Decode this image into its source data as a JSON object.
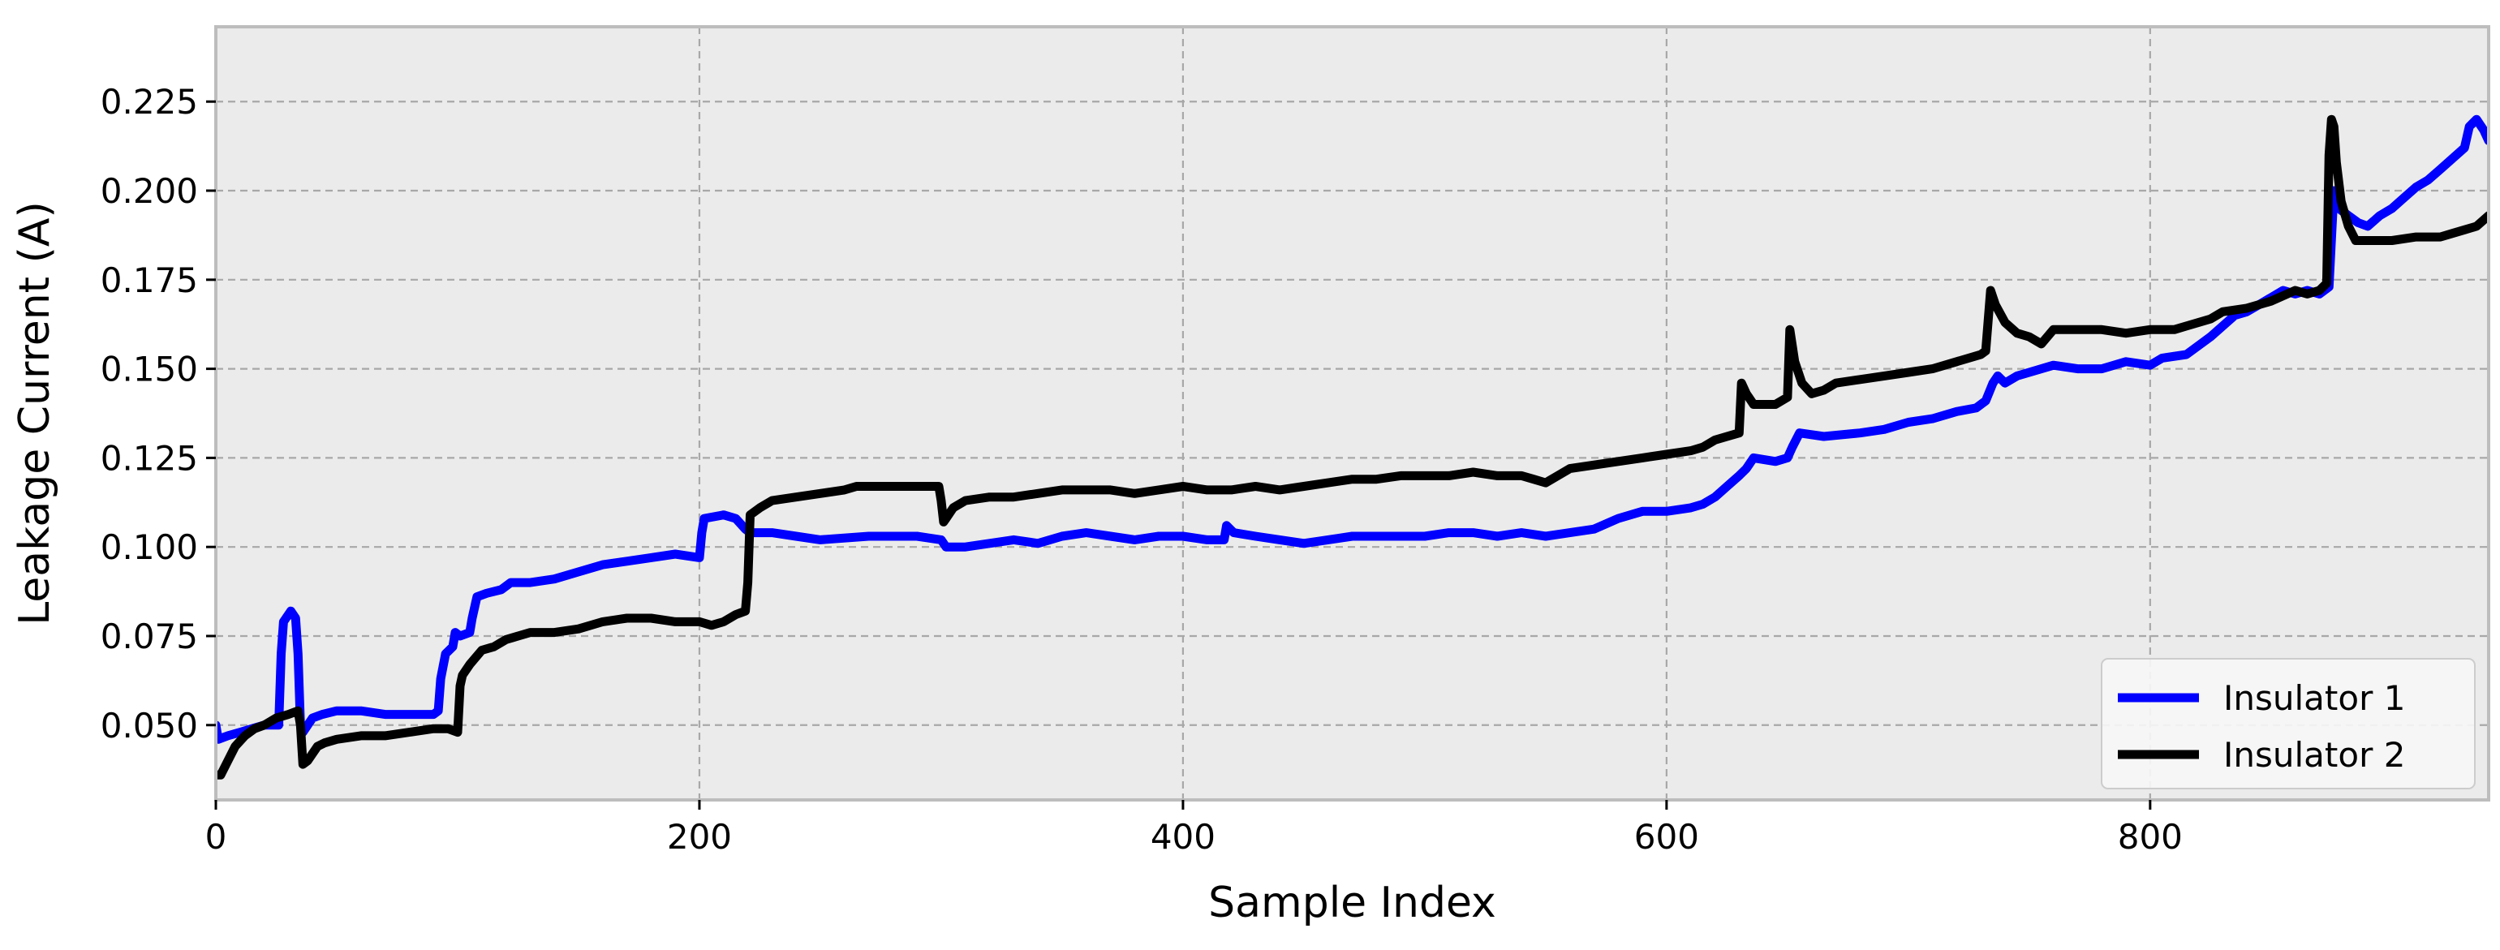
{
  "chart_data": {
    "type": "line",
    "title": "",
    "xlabel": "Sample Index",
    "ylabel": "Leakage Current (A)",
    "xlim": [
      0,
      940
    ],
    "ylim": [
      0.029,
      0.246
    ],
    "xticks": [
      0,
      200,
      400,
      600,
      800
    ],
    "yticks": [
      0.05,
      0.075,
      0.1,
      0.125,
      0.15,
      0.175,
      0.2,
      0.225
    ],
    "xtick_labels": [
      "0",
      "200",
      "400",
      "600",
      "800"
    ],
    "ytick_labels": [
      "0.050",
      "0.075",
      "0.100",
      "0.125",
      "0.150",
      "0.175",
      "0.200",
      "0.225"
    ],
    "grid": true,
    "legend_position": "bottom-right",
    "colors": {
      "plot_background": "#ebebeb",
      "grid": "#a8a8a8",
      "frame": "#bdbdbd",
      "insulator_1": "#0000ff",
      "insulator_2": "#000000"
    },
    "series": [
      {
        "name": "Insulator 1",
        "color": "#0000ff",
        "points": [
          [
            0,
            0.05
          ],
          [
            1,
            0.046
          ],
          [
            5,
            0.047
          ],
          [
            10,
            0.048
          ],
          [
            15,
            0.049
          ],
          [
            20,
            0.05
          ],
          [
            26,
            0.05
          ],
          [
            27,
            0.07
          ],
          [
            28,
            0.079
          ],
          [
            31,
            0.082
          ],
          [
            33,
            0.08
          ],
          [
            34,
            0.07
          ],
          [
            35,
            0.05
          ],
          [
            36,
            0.048
          ],
          [
            38,
            0.05
          ],
          [
            40,
            0.052
          ],
          [
            44,
            0.053
          ],
          [
            50,
            0.054
          ],
          [
            60,
            0.054
          ],
          [
            70,
            0.053
          ],
          [
            80,
            0.053
          ],
          [
            90,
            0.053
          ],
          [
            92,
            0.054
          ],
          [
            93,
            0.063
          ],
          [
            95,
            0.07
          ],
          [
            98,
            0.072
          ],
          [
            99,
            0.076
          ],
          [
            101,
            0.075
          ],
          [
            105,
            0.076
          ],
          [
            106,
            0.08
          ],
          [
            108,
            0.086
          ],
          [
            112,
            0.087
          ],
          [
            118,
            0.088
          ],
          [
            122,
            0.09
          ],
          [
            130,
            0.09
          ],
          [
            140,
            0.091
          ],
          [
            150,
            0.093
          ],
          [
            160,
            0.095
          ],
          [
            170,
            0.096
          ],
          [
            180,
            0.097
          ],
          [
            190,
            0.098
          ],
          [
            200,
            0.097
          ],
          [
            201,
            0.104
          ],
          [
            202,
            0.108
          ],
          [
            210,
            0.109
          ],
          [
            215,
            0.108
          ],
          [
            219,
            0.105
          ],
          [
            221,
            0.104
          ],
          [
            230,
            0.104
          ],
          [
            240,
            0.103
          ],
          [
            250,
            0.102
          ],
          [
            270,
            0.103
          ],
          [
            290,
            0.103
          ],
          [
            300,
            0.102
          ],
          [
            302,
            0.1
          ],
          [
            310,
            0.1
          ],
          [
            320,
            0.101
          ],
          [
            330,
            0.102
          ],
          [
            340,
            0.101
          ],
          [
            350,
            0.103
          ],
          [
            360,
            0.104
          ],
          [
            370,
            0.103
          ],
          [
            380,
            0.102
          ],
          [
            390,
            0.103
          ],
          [
            400,
            0.103
          ],
          [
            410,
            0.102
          ],
          [
            417,
            0.102
          ],
          [
            418,
            0.106
          ],
          [
            421,
            0.104
          ],
          [
            430,
            0.103
          ],
          [
            440,
            0.102
          ],
          [
            450,
            0.101
          ],
          [
            460,
            0.102
          ],
          [
            470,
            0.103
          ],
          [
            480,
            0.103
          ],
          [
            490,
            0.103
          ],
          [
            500,
            0.103
          ],
          [
            510,
            0.104
          ],
          [
            520,
            0.104
          ],
          [
            530,
            0.103
          ],
          [
            540,
            0.104
          ],
          [
            550,
            0.103
          ],
          [
            560,
            0.104
          ],
          [
            570,
            0.105
          ],
          [
            580,
            0.108
          ],
          [
            590,
            0.11
          ],
          [
            600,
            0.11
          ],
          [
            610,
            0.111
          ],
          [
            615,
            0.112
          ],
          [
            620,
            0.114
          ],
          [
            625,
            0.117
          ],
          [
            630,
            0.12
          ],
          [
            633,
            0.122
          ],
          [
            636,
            0.125
          ],
          [
            645,
            0.124
          ],
          [
            650,
            0.125
          ],
          [
            652,
            0.128
          ],
          [
            655,
            0.132
          ],
          [
            665,
            0.131
          ],
          [
            680,
            0.132
          ],
          [
            690,
            0.133
          ],
          [
            700,
            0.135
          ],
          [
            710,
            0.136
          ],
          [
            720,
            0.138
          ],
          [
            728,
            0.139
          ],
          [
            732,
            0.141
          ],
          [
            735,
            0.146
          ],
          [
            737,
            0.148
          ],
          [
            740,
            0.146
          ],
          [
            745,
            0.148
          ],
          [
            750,
            0.149
          ],
          [
            760,
            0.151
          ],
          [
            770,
            0.15
          ],
          [
            780,
            0.15
          ],
          [
            790,
            0.152
          ],
          [
            800,
            0.151
          ],
          [
            805,
            0.153
          ],
          [
            815,
            0.154
          ],
          [
            825,
            0.159
          ],
          [
            835,
            0.165
          ],
          [
            840,
            0.166
          ],
          [
            845,
            0.168
          ],
          [
            850,
            0.17
          ],
          [
            855,
            0.172
          ],
          [
            860,
            0.171
          ],
          [
            865,
            0.172
          ],
          [
            870,
            0.171
          ],
          [
            874,
            0.173
          ],
          [
            876,
            0.2
          ],
          [
            878,
            0.195
          ],
          [
            882,
            0.193
          ],
          [
            886,
            0.191
          ],
          [
            890,
            0.19
          ],
          [
            895,
            0.193
          ],
          [
            900,
            0.195
          ],
          [
            905,
            0.198
          ],
          [
            910,
            0.201
          ],
          [
            915,
            0.203
          ],
          [
            920,
            0.206
          ],
          [
            925,
            0.209
          ],
          [
            930,
            0.212
          ],
          [
            932,
            0.218
          ],
          [
            935,
            0.22
          ],
          [
            938,
            0.217
          ],
          [
            940,
            0.214
          ]
        ]
      },
      {
        "name": "Insulator 2",
        "color": "#000000",
        "points": [
          [
            0,
            0.036
          ],
          [
            2,
            0.036
          ],
          [
            5,
            0.04
          ],
          [
            8,
            0.044
          ],
          [
            12,
            0.047
          ],
          [
            16,
            0.049
          ],
          [
            20,
            0.05
          ],
          [
            25,
            0.052
          ],
          [
            30,
            0.053
          ],
          [
            34,
            0.054
          ],
          [
            35,
            0.05
          ],
          [
            36,
            0.039
          ],
          [
            38,
            0.04
          ],
          [
            40,
            0.042
          ],
          [
            42,
            0.044
          ],
          [
            45,
            0.045
          ],
          [
            50,
            0.046
          ],
          [
            60,
            0.047
          ],
          [
            70,
            0.047
          ],
          [
            80,
            0.048
          ],
          [
            90,
            0.049
          ],
          [
            96,
            0.049
          ],
          [
            100,
            0.048
          ],
          [
            101,
            0.061
          ],
          [
            102,
            0.064
          ],
          [
            105,
            0.067
          ],
          [
            110,
            0.071
          ],
          [
            115,
            0.072
          ],
          [
            120,
            0.074
          ],
          [
            125,
            0.075
          ],
          [
            130,
            0.076
          ],
          [
            140,
            0.076
          ],
          [
            150,
            0.077
          ],
          [
            160,
            0.079
          ],
          [
            170,
            0.08
          ],
          [
            180,
            0.08
          ],
          [
            190,
            0.079
          ],
          [
            200,
            0.079
          ],
          [
            205,
            0.078
          ],
          [
            210,
            0.079
          ],
          [
            215,
            0.081
          ],
          [
            219,
            0.082
          ],
          [
            220,
            0.09
          ],
          [
            221,
            0.109
          ],
          [
            225,
            0.111
          ],
          [
            230,
            0.113
          ],
          [
            240,
            0.114
          ],
          [
            250,
            0.115
          ],
          [
            260,
            0.116
          ],
          [
            265,
            0.117
          ],
          [
            280,
            0.117
          ],
          [
            299,
            0.117
          ],
          [
            300,
            0.113
          ],
          [
            301,
            0.107
          ],
          [
            302,
            0.108
          ],
          [
            305,
            0.111
          ],
          [
            310,
            0.113
          ],
          [
            320,
            0.114
          ],
          [
            330,
            0.114
          ],
          [
            340,
            0.115
          ],
          [
            350,
            0.116
          ],
          [
            360,
            0.116
          ],
          [
            370,
            0.116
          ],
          [
            380,
            0.115
          ],
          [
            390,
            0.116
          ],
          [
            400,
            0.117
          ],
          [
            410,
            0.116
          ],
          [
            420,
            0.116
          ],
          [
            430,
            0.117
          ],
          [
            440,
            0.116
          ],
          [
            450,
            0.117
          ],
          [
            460,
            0.118
          ],
          [
            470,
            0.119
          ],
          [
            480,
            0.119
          ],
          [
            490,
            0.12
          ],
          [
            500,
            0.12
          ],
          [
            510,
            0.12
          ],
          [
            520,
            0.121
          ],
          [
            530,
            0.12
          ],
          [
            540,
            0.12
          ],
          [
            545,
            0.119
          ],
          [
            550,
            0.118
          ],
          [
            555,
            0.12
          ],
          [
            560,
            0.122
          ],
          [
            570,
            0.123
          ],
          [
            580,
            0.124
          ],
          [
            590,
            0.125
          ],
          [
            600,
            0.126
          ],
          [
            610,
            0.127
          ],
          [
            615,
            0.128
          ],
          [
            620,
            0.13
          ],
          [
            625,
            0.131
          ],
          [
            630,
            0.132
          ],
          [
            631,
            0.146
          ],
          [
            633,
            0.143
          ],
          [
            636,
            0.14
          ],
          [
            640,
            0.14
          ],
          [
            645,
            0.14
          ],
          [
            650,
            0.142
          ],
          [
            651,
            0.161
          ],
          [
            653,
            0.152
          ],
          [
            656,
            0.146
          ],
          [
            660,
            0.143
          ],
          [
            665,
            0.144
          ],
          [
            670,
            0.146
          ],
          [
            680,
            0.147
          ],
          [
            690,
            0.148
          ],
          [
            700,
            0.149
          ],
          [
            710,
            0.15
          ],
          [
            720,
            0.152
          ],
          [
            730,
            0.154
          ],
          [
            732,
            0.155
          ],
          [
            734,
            0.172
          ],
          [
            736,
            0.168
          ],
          [
            740,
            0.163
          ],
          [
            745,
            0.16
          ],
          [
            750,
            0.159
          ],
          [
            755,
            0.157
          ],
          [
            760,
            0.161
          ],
          [
            770,
            0.161
          ],
          [
            780,
            0.161
          ],
          [
            790,
            0.16
          ],
          [
            800,
            0.161
          ],
          [
            810,
            0.161
          ],
          [
            815,
            0.162
          ],
          [
            820,
            0.163
          ],
          [
            825,
            0.164
          ],
          [
            830,
            0.166
          ],
          [
            840,
            0.167
          ],
          [
            850,
            0.169
          ],
          [
            860,
            0.172
          ],
          [
            865,
            0.171
          ],
          [
            870,
            0.172
          ],
          [
            873,
            0.174
          ],
          [
            874,
            0.21
          ],
          [
            875,
            0.22
          ],
          [
            876,
            0.218
          ],
          [
            877,
            0.208
          ],
          [
            879,
            0.197
          ],
          [
            882,
            0.19
          ],
          [
            885,
            0.186
          ],
          [
            890,
            0.186
          ],
          [
            900,
            0.186
          ],
          [
            910,
            0.187
          ],
          [
            920,
            0.187
          ],
          [
            925,
            0.188
          ],
          [
            930,
            0.189
          ],
          [
            935,
            0.19
          ],
          [
            940,
            0.193
          ]
        ]
      }
    ]
  }
}
